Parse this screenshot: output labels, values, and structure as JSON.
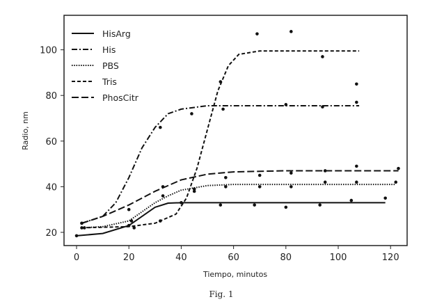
{
  "chart_data": {
    "type": "line",
    "title": "",
    "xlabel": "Tiempo, minutos",
    "ylabel": "Radio, nm",
    "caption": "Fig. 1",
    "xlim": [
      -5,
      126
    ],
    "ylim": [
      14,
      115
    ],
    "xticks": [
      0,
      20,
      40,
      60,
      80,
      100,
      120
    ],
    "yticks": [
      20,
      40,
      60,
      80,
      100
    ],
    "grid": false,
    "legend_position": "top-left",
    "series": [
      {
        "name": "HisArg",
        "style": "solid",
        "line": [
          [
            0,
            18.5
          ],
          [
            10,
            19.5
          ],
          [
            20,
            23
          ],
          [
            25,
            27
          ],
          [
            30,
            31
          ],
          [
            35,
            32.8
          ],
          [
            40,
            33
          ],
          [
            118,
            33
          ]
        ],
        "points": [
          [
            0,
            18.5
          ],
          [
            20,
            23
          ],
          [
            40,
            33
          ],
          [
            55,
            32
          ],
          [
            68,
            32
          ],
          [
            80,
            31
          ],
          [
            93,
            32
          ],
          [
            105,
            34
          ],
          [
            118,
            35
          ]
        ]
      },
      {
        "name": "His",
        "style": "dash-dot",
        "line": [
          [
            2,
            24
          ],
          [
            10,
            27
          ],
          [
            15,
            33
          ],
          [
            20,
            44
          ],
          [
            25,
            57
          ],
          [
            30,
            66
          ],
          [
            35,
            72
          ],
          [
            40,
            74
          ],
          [
            50,
            75.5
          ],
          [
            108,
            75.5
          ]
        ],
        "points": [
          [
            2,
            24
          ],
          [
            20,
            30
          ],
          [
            32,
            66
          ],
          [
            44,
            72
          ],
          [
            56,
            74
          ],
          [
            80,
            76
          ],
          [
            94,
            75
          ],
          [
            107,
            77
          ]
        ]
      },
      {
        "name": "PBS",
        "style": "dotted",
        "line": [
          [
            2,
            22
          ],
          [
            10,
            22.5
          ],
          [
            20,
            25
          ],
          [
            25,
            29
          ],
          [
            30,
            33
          ],
          [
            35,
            36
          ],
          [
            40,
            38.5
          ],
          [
            50,
            40.5
          ],
          [
            60,
            41
          ],
          [
            122,
            41
          ]
        ],
        "points": [
          [
            3,
            22
          ],
          [
            21,
            25
          ],
          [
            33,
            36
          ],
          [
            45,
            38
          ],
          [
            57,
            40
          ],
          [
            70,
            40
          ],
          [
            82,
            40
          ],
          [
            95,
            42
          ],
          [
            107,
            42
          ],
          [
            122,
            42
          ]
        ]
      },
      {
        "name": "Tris",
        "style": "dashed",
        "line": [
          [
            2,
            22
          ],
          [
            20,
            22.5
          ],
          [
            30,
            24
          ],
          [
            38,
            28
          ],
          [
            42,
            35
          ],
          [
            46,
            48
          ],
          [
            50,
            65
          ],
          [
            54,
            82
          ],
          [
            58,
            93
          ],
          [
            62,
            98
          ],
          [
            70,
            99.5
          ],
          [
            108,
            99.5
          ]
        ],
        "points": [
          [
            2,
            22
          ],
          [
            22,
            22
          ],
          [
            32,
            25
          ],
          [
            45,
            39
          ],
          [
            55,
            86
          ],
          [
            69,
            107
          ],
          [
            82,
            108
          ],
          [
            94,
            97
          ],
          [
            107,
            85
          ]
        ]
      },
      {
        "name": "PhosCitr",
        "style": "long-dash",
        "line": [
          [
            2,
            24
          ],
          [
            10,
            27
          ],
          [
            20,
            32
          ],
          [
            30,
            38
          ],
          [
            40,
            43
          ],
          [
            50,
            45.5
          ],
          [
            60,
            46.5
          ],
          [
            80,
            47
          ],
          [
            123,
            47
          ]
        ],
        "points": [
          [
            2,
            24
          ],
          [
            33,
            40
          ],
          [
            57,
            44
          ],
          [
            70,
            45
          ],
          [
            82,
            46
          ],
          [
            95,
            47
          ],
          [
            107,
            49
          ],
          [
            123,
            48
          ]
        ]
      }
    ]
  }
}
